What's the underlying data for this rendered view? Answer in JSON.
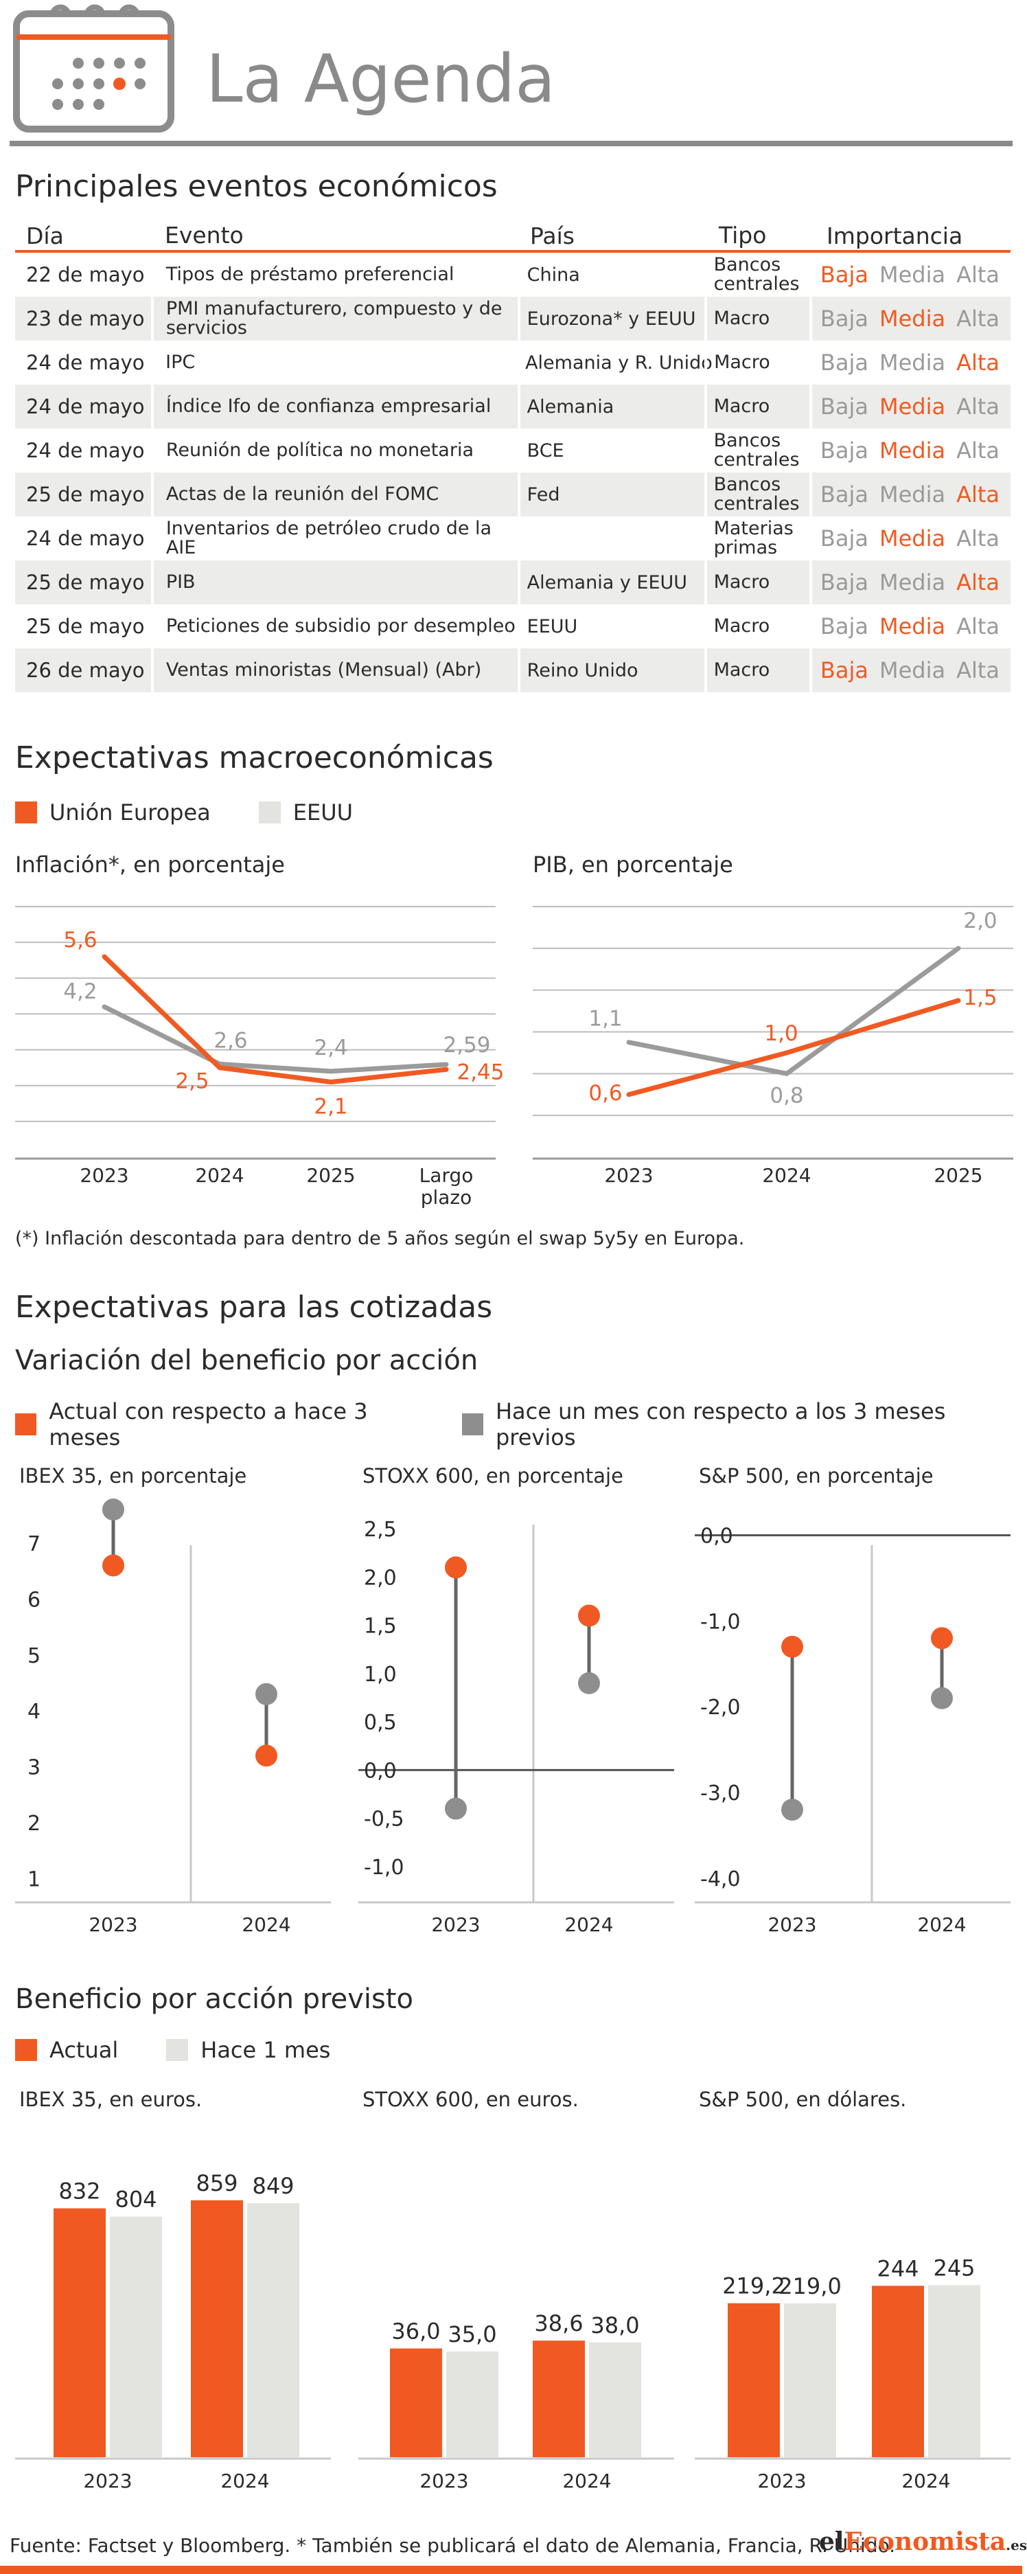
{
  "header": {
    "title": "La Agenda"
  },
  "events": {
    "title": "Principales eventos económicos",
    "columns": [
      "Día",
      "Evento",
      "País",
      "Tipo",
      "Importancia"
    ],
    "levels": [
      "Baja",
      "Media",
      "Alta"
    ],
    "rows": [
      {
        "dia": "22 de mayo",
        "evento": "Tipos de préstamo preferencial",
        "pais": "China",
        "tipo": "Bancos centrales",
        "importancia": "Baja"
      },
      {
        "dia": "23 de mayo",
        "evento": "PMI manufacturero, compuesto y de servicios",
        "pais": "Eurozona* y EEUU",
        "tipo": "Macro",
        "importancia": "Media"
      },
      {
        "dia": "24 de mayo",
        "evento": "IPC",
        "pais": "Alemania y R. Unido",
        "tipo": "Macro",
        "importancia": "Alta"
      },
      {
        "dia": "24 de mayo",
        "evento": "Índice Ifo de confianza empresarial",
        "pais": "Alemania",
        "tipo": "Macro",
        "importancia": "Media"
      },
      {
        "dia": "24 de mayo",
        "evento": "Reunión de política no monetaria",
        "pais": "BCE",
        "tipo": "Bancos centrales",
        "importancia": "Media"
      },
      {
        "dia": "25 de mayo",
        "evento": "Actas de la reunión del FOMC",
        "pais": "Fed",
        "tipo": "Bancos centrales",
        "importancia": "Alta"
      },
      {
        "dia": "24 de mayo",
        "evento": "Inventarios de petróleo crudo de la AIE",
        "pais": "",
        "tipo": "Materias primas",
        "importancia": "Media"
      },
      {
        "dia": "25 de mayo",
        "evento": "PIB",
        "pais": "Alemania y EEUU",
        "tipo": "Macro",
        "importancia": "Alta"
      },
      {
        "dia": "25 de mayo",
        "evento": "Peticiones de subsidio por desempleo",
        "pais": "EEUU",
        "tipo": "Macro",
        "importancia": "Media"
      },
      {
        "dia": "26 de mayo",
        "evento": "Ventas minoristas (Mensual) (Abr)",
        "pais": "Reino Unido",
        "tipo": "Macro",
        "importancia": "Baja"
      }
    ]
  },
  "macro": {
    "title": "Expectativas macroeconómicas",
    "legend": [
      "Unión Europea",
      "EEUU"
    ],
    "footnote": "(*) Inflación descontada para dentro de 5 años según el swap 5y5y en Europa."
  },
  "cotizadas": {
    "title": "Expectativas para las cotizadas",
    "subtitle": "Variación del beneficio por acción",
    "legend": [
      "Actual con respecto a hace 3 meses",
      "Hace un mes con respecto a los 3 meses previos"
    ]
  },
  "beneficio": {
    "subtitle": "Beneficio por acción previsto",
    "legend": [
      "Actual",
      "Hace 1 mes"
    ]
  },
  "footer": {
    "source": "Fuente: Factset y Bloomberg. * También se publicará el dato de Alemania, Francia, R. Unido.",
    "brand_a": "el",
    "brand_b": "Economista",
    "brand_c": ".es"
  },
  "colors": {
    "orange": "#f05a22",
    "gray": "#9b9b9b",
    "lightgray": "#e3e3df",
    "text": "#2b2b2b"
  },
  "chart_data": [
    {
      "id": "inflacion",
      "type": "line",
      "title": "Inflación*, en porcentaje",
      "categories": [
        "2023",
        "2024",
        "2025",
        "Largo plazo"
      ],
      "series": [
        {
          "name": "Unión Europea",
          "values": [
            5.6,
            2.5,
            2.1,
            2.45
          ],
          "labels": [
            "5,6",
            "2,5",
            "2,1",
            "2,45"
          ]
        },
        {
          "name": "EEUU",
          "values": [
            4.2,
            2.6,
            2.4,
            2.59
          ],
          "labels": [
            "4,2",
            "2,6",
            "2,4",
            "2,59"
          ]
        }
      ],
      "ylim": [
        0,
        7
      ],
      "grid": true
    },
    {
      "id": "pib",
      "type": "line",
      "title": "PIB, en porcentaje",
      "categories": [
        "2023",
        "2024",
        "2025"
      ],
      "series": [
        {
          "name": "Unión Europea",
          "values": [
            0.6,
            1.0,
            1.5
          ],
          "labels": [
            "0,6",
            "1,0",
            "1,5"
          ]
        },
        {
          "name": "EEUU",
          "values": [
            1.1,
            0.8,
            2.0
          ],
          "labels": [
            "1,1",
            "0,8",
            "2,0"
          ]
        }
      ],
      "ylim": [
        0,
        2.4
      ],
      "grid": true
    },
    {
      "id": "bpa-ibex",
      "type": "scatter",
      "title": "IBEX 35, en porcentaje",
      "categories": [
        "2023",
        "2024"
      ],
      "yticks": [
        7,
        6,
        5,
        4,
        3,
        2,
        1
      ],
      "ytick_labels": [
        "7",
        "6",
        "5",
        "4",
        "3",
        "2",
        "1"
      ],
      "ylim": [
        0.7,
        7.6
      ],
      "series": [
        {
          "name": "Actual con respecto a hace 3 meses",
          "values": [
            6.6,
            3.2
          ]
        },
        {
          "name": "Hace un mes con respecto a los 3 meses previos",
          "values": [
            7.6,
            4.3
          ]
        }
      ]
    },
    {
      "id": "bpa-stoxx",
      "type": "scatter",
      "title": "STOXX 600, en porcentaje",
      "categories": [
        "2023",
        "2024"
      ],
      "yticks": [
        2.5,
        2.0,
        1.5,
        1.0,
        0.5,
        0.0,
        -0.5,
        -1.0
      ],
      "ytick_labels": [
        "2,5",
        "2,0",
        "1,5",
        "1,0",
        "0,5",
        "0,0",
        "-0,5",
        "-1,0"
      ],
      "ylim": [
        -1.3,
        2.7
      ],
      "series": [
        {
          "name": "Actual con respecto a hace 3 meses",
          "values": [
            2.1,
            1.6
          ]
        },
        {
          "name": "Hace un mes con respecto a los 3 meses previos",
          "values": [
            -0.4,
            0.9
          ]
        }
      ]
    },
    {
      "id": "bpa-sp",
      "type": "scatter",
      "title": "S&P 500, en porcentaje",
      "categories": [
        "2023",
        "2024"
      ],
      "yticks": [
        0.0,
        -1.0,
        -2.0,
        -3.0,
        -4.0
      ],
      "ytick_labels": [
        "0,0",
        "-1,0",
        "-2,0",
        "-3,0",
        "-4,0"
      ],
      "ylim": [
        -4.2,
        0.3
      ],
      "series": [
        {
          "name": "Actual con respecto a hace 3 meses",
          "values": [
            -1.3,
            -1.2
          ]
        },
        {
          "name": "Hace un mes con respecto a los 3 meses previos",
          "values": [
            -3.2,
            -1.9
          ]
        }
      ]
    },
    {
      "id": "bpa-prev-ibex",
      "type": "bar",
      "title": "IBEX 35, en euros.",
      "categories": [
        "2023",
        "2024"
      ],
      "series": [
        {
          "name": "Actual",
          "values": [
            832,
            859
          ],
          "labels": [
            "832",
            "859"
          ]
        },
        {
          "name": "Hace 1 mes",
          "values": [
            804,
            849
          ],
          "labels": [
            "804",
            "849"
          ]
        }
      ],
      "ylim": [
        0,
        1010
      ]
    },
    {
      "id": "bpa-prev-stoxx",
      "type": "bar",
      "title": "STOXX 600, en euros.",
      "categories": [
        "2023",
        "2024"
      ],
      "series": [
        {
          "name": "Actual",
          "values": [
            36.0,
            38.6
          ],
          "labels": [
            "36,0",
            "38,6"
          ]
        },
        {
          "name": "Hace 1 mes",
          "values": [
            35.0,
            38.0
          ],
          "labels": [
            "35,0",
            "38,0"
          ]
        }
      ],
      "ylim": [
        0,
        100
      ]
    },
    {
      "id": "bpa-prev-sp",
      "type": "bar",
      "title": "S&P 500, en dólares.",
      "categories": [
        "2023",
        "2024"
      ],
      "series": [
        {
          "name": "Actual",
          "values": [
            219.2,
            244
          ],
          "labels": [
            "219,2",
            "244"
          ]
        },
        {
          "name": "Hace 1 mes",
          "values": [
            219.0,
            245
          ],
          "labels": [
            "219,0",
            "245"
          ]
        }
      ],
      "ylim": [
        0,
        430
      ]
    }
  ]
}
